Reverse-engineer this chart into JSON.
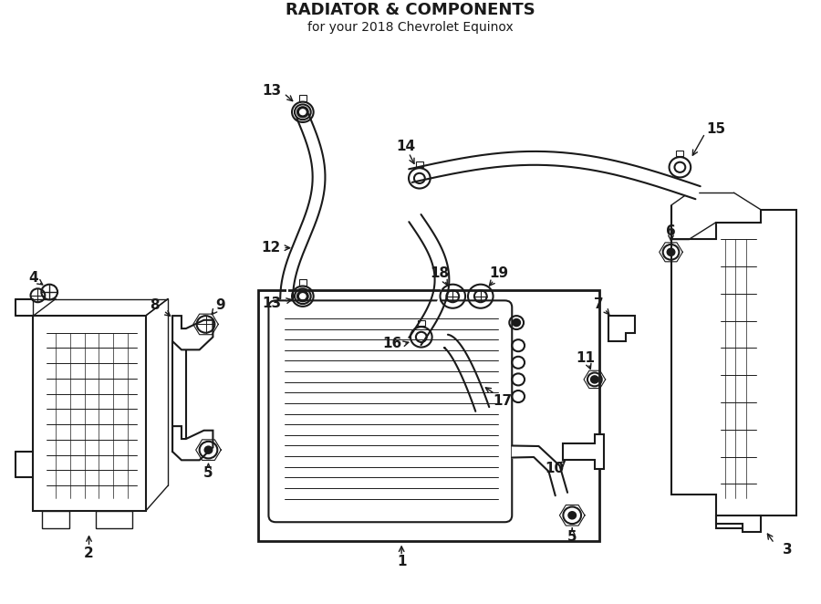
{
  "title": "RADIATOR & COMPONENTS",
  "subtitle": "for your 2018 Chevrolet Equinox",
  "bg_color": "#ffffff",
  "line_color": "#1a1a1a",
  "fig_width": 9.0,
  "fig_height": 6.62,
  "dpi": 100
}
